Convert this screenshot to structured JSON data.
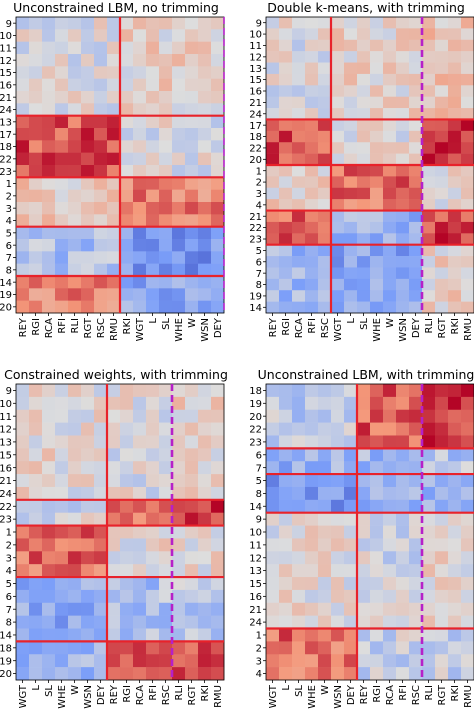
{
  "chart_data": [
    {
      "type": "heatmap",
      "title": "Unconstrained LBM, no trimming",
      "rows": [
        "9",
        "10",
        "11",
        "12",
        "15",
        "16",
        "21",
        "24",
        "13",
        "17",
        "18",
        "22",
        "23",
        "1",
        "2",
        "3",
        "4",
        "5",
        "6",
        "7",
        "8",
        "14",
        "19",
        "20"
      ],
      "cols": [
        "REY",
        "RGI",
        "RCA",
        "RFI",
        "RLI",
        "RGT",
        "RSC",
        "RMU",
        "RKI",
        "WGT",
        "L",
        "SL",
        "WHE",
        "W",
        "WSN",
        "DEY"
      ],
      "col_label_colors": [
        "#000000",
        "#000000",
        "#000000",
        "#000000",
        "#000000",
        "#000000",
        "#000000",
        "#000000",
        "#000000",
        "#000000",
        "#000000",
        "#000000",
        "#000000",
        "#000000",
        "#000000",
        "#000000"
      ],
      "row_groups": [
        8,
        5,
        4,
        4,
        3
      ],
      "col_groups": [
        8,
        8
      ],
      "trim_cols": 0,
      "row_blocks": [
        [
          0,
          0.1
        ],
        [
          0.75,
          0.0
        ],
        [
          0.15,
          0.55
        ],
        [
          -0.25,
          -0.55
        ],
        [
          0.55,
          -0.4
        ]
      ],
      "trimmed_block": [],
      "colormap": "coolwarm",
      "grid": false
    },
    {
      "type": "heatmap",
      "title": "Double k-means, with trimming",
      "rows": [
        "9",
        "10",
        "11",
        "12",
        "13",
        "15",
        "16",
        "21",
        "24",
        "17",
        "18",
        "22",
        "20",
        "1",
        "2",
        "3",
        "4",
        "21",
        "22",
        "23",
        "5",
        "6",
        "7",
        "8",
        "19",
        "14"
      ],
      "cols": [
        "REY",
        "RGI",
        "RCA",
        "RFI",
        "RSC",
        "WGT",
        "L",
        "SL",
        "WHE",
        "W",
        "WSN",
        "DEY",
        "RLI",
        "RGT",
        "RKI",
        "RMU"
      ],
      "col_label_colors": [
        "#000000",
        "#000000",
        "#000000",
        "#000000",
        "#000000",
        "#000000",
        "#000000",
        "#000000",
        "#000000",
        "#000000",
        "#000000",
        "#000000",
        "#cc2222",
        "#cc2222",
        "#cc2222",
        "#cc2222"
      ],
      "row_groups": [
        9,
        4,
        4,
        3,
        6
      ],
      "col_groups": [
        5,
        7
      ],
      "trim_cols": 4,
      "row_blocks": [
        [
          0.0,
          0.1
        ],
        [
          0.75,
          0.05
        ],
        [
          0.1,
          0.65
        ],
        [
          0.7,
          -0.35
        ],
        [
          -0.3,
          -0.45
        ]
      ],
      "trimmed_block": [
        0.2,
        0.9,
        0.05,
        0.8,
        0.1
      ],
      "colormap": "coolwarm",
      "grid": false
    },
    {
      "type": "heatmap",
      "title": "Constrained weights, with trimming",
      "rows": [
        "9",
        "10",
        "11",
        "12",
        "13",
        "15",
        "16",
        "21",
        "24",
        "22",
        "23",
        "1",
        "2",
        "3",
        "4",
        "5",
        "6",
        "7",
        "8",
        "14",
        "18",
        "19",
        "20"
      ],
      "cols": [
        "WGT",
        "L",
        "SL",
        "WHE",
        "W",
        "WSN",
        "DEY",
        "REY",
        "RGI",
        "RCA",
        "RFI",
        "RSC",
        "RLI",
        "RGT",
        "RKI",
        "RMU"
      ],
      "col_label_colors": [
        "#000000",
        "#000000",
        "#000000",
        "#000000",
        "#000000",
        "#000000",
        "#000000",
        "#000000",
        "#000000",
        "#000000",
        "#000000",
        "#000000",
        "#cc2222",
        "#cc2222",
        "#cc2222",
        "#cc2222"
      ],
      "row_groups": [
        9,
        2,
        4,
        5,
        3
      ],
      "col_groups": [
        7,
        5
      ],
      "trim_cols": 4,
      "row_blocks": [
        [
          0.05,
          0.0
        ],
        [
          -0.05,
          0.6
        ],
        [
          0.65,
          0.05
        ],
        [
          -0.4,
          -0.25
        ],
        [
          -0.3,
          0.7
        ]
      ],
      "trimmed_block": [
        0.1,
        0.85,
        0.05,
        -0.2,
        0.75
      ],
      "colormap": "coolwarm",
      "grid": false
    },
    {
      "type": "heatmap",
      "title": "Unconstrained LBM, with trimming",
      "rows": [
        "18",
        "19",
        "20",
        "22",
        "23",
        "6",
        "7",
        "5",
        "8",
        "14",
        "9",
        "10",
        "11",
        "12",
        "13",
        "15",
        "16",
        "21",
        "24",
        "1",
        "2",
        "3",
        "4"
      ],
      "cols": [
        "WGT",
        "L",
        "SL",
        "WHE",
        "W",
        "WSN",
        "DEY",
        "REY",
        "RGI",
        "RCA",
        "RFI",
        "RSC",
        "RLI",
        "RGT",
        "RKI",
        "RMU"
      ],
      "col_label_colors": [
        "#000000",
        "#000000",
        "#000000",
        "#000000",
        "#000000",
        "#000000",
        "#000000",
        "#000000",
        "#000000",
        "#000000",
        "#000000",
        "#000000",
        "#cc2222",
        "#cc2222",
        "#cc2222",
        "#cc2222"
      ],
      "row_groups": [
        5,
        2,
        3,
        9,
        4
      ],
      "col_groups": [
        7,
        5
      ],
      "trim_cols": 4,
      "row_blocks": [
        [
          -0.15,
          0.7
        ],
        [
          -0.35,
          -0.3
        ],
        [
          -0.55,
          -0.35
        ],
        [
          0.05,
          -0.05
        ],
        [
          0.65,
          -0.1
        ]
      ],
      "trimmed_block": [
        0.85,
        -0.2,
        -0.3,
        0.05,
        -0.1
      ],
      "colormap": "coolwarm",
      "grid": false
    }
  ]
}
